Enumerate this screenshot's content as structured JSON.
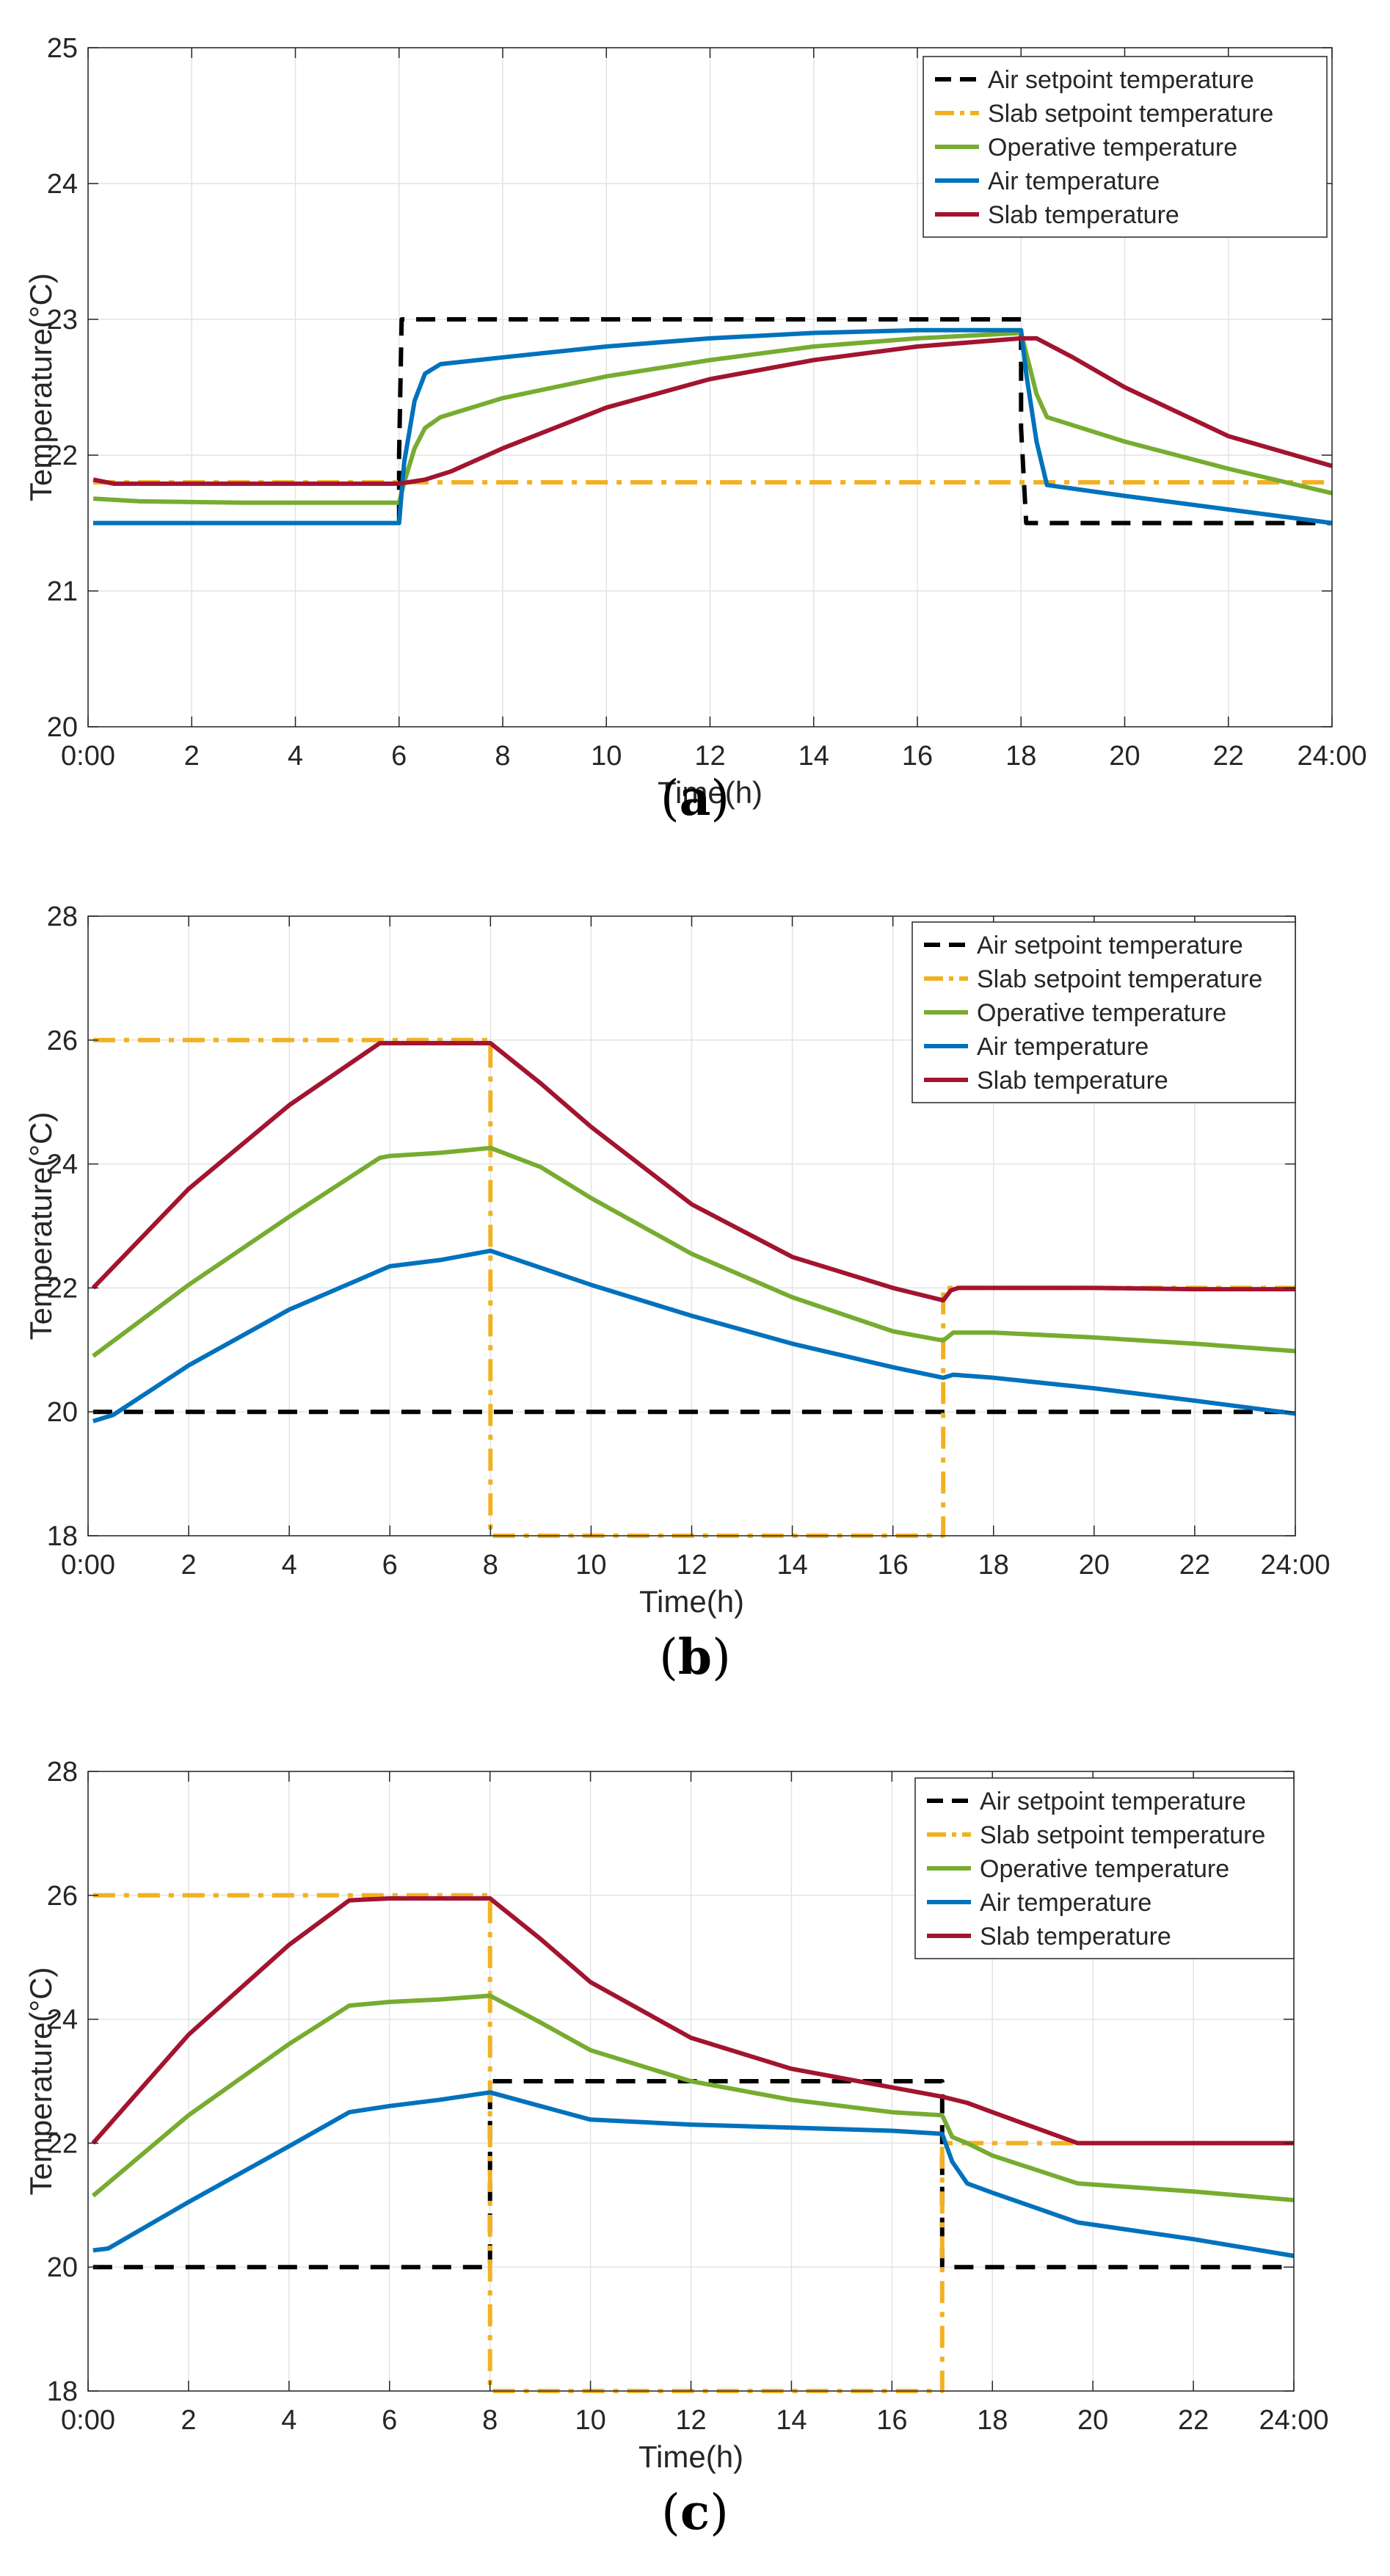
{
  "chart_data": [
    {
      "type": "line",
      "panel_label": "a",
      "xlabel": "Time(h)",
      "ylabel": "Temperature(°C)",
      "xlim": [
        0,
        24
      ],
      "ylim": [
        20,
        25
      ],
      "xticks": [
        0,
        2,
        4,
        6,
        8,
        10,
        12,
        14,
        16,
        18,
        20,
        22,
        24
      ],
      "xtick_labels": [
        "0:00",
        "2",
        "4",
        "6",
        "8",
        "10",
        "12",
        "14",
        "16",
        "18",
        "20",
        "22",
        "24:00"
      ],
      "yticks": [
        20,
        21,
        22,
        23,
        24,
        25
      ],
      "ytick_labels": [
        "20",
        "21",
        "22",
        "23",
        "24",
        "25"
      ],
      "grid": true,
      "legend_position": "top-right",
      "series": [
        {
          "name": "Air setpoint temperature",
          "color": "#000000",
          "style": "dashed",
          "x": [
            0.1,
            6.0,
            6.0,
            6.05,
            18.0,
            18.0,
            18.1,
            24.0
          ],
          "y": [
            21.5,
            21.5,
            22.0,
            23.0,
            23.0,
            22.2,
            21.5,
            21.5
          ]
        },
        {
          "name": "Slab setpoint temperature",
          "color": "#F2B122",
          "style": "dashdot",
          "x": [
            0.1,
            6.0,
            6.05,
            24.0
          ],
          "y": [
            21.8,
            21.8,
            21.8,
            21.8
          ]
        },
        {
          "name": "Operative temperature",
          "color": "#77AC30",
          "style": "solid",
          "x": [
            0.1,
            1,
            3,
            6.0,
            6.1,
            6.3,
            6.5,
            6.8,
            8,
            10,
            12,
            14,
            16,
            18.0,
            18.1,
            18.3,
            18.5,
            20,
            22,
            24
          ],
          "y": [
            21.68,
            21.66,
            21.65,
            21.65,
            21.8,
            22.05,
            22.2,
            22.28,
            22.42,
            22.58,
            22.7,
            22.8,
            22.86,
            22.9,
            22.75,
            22.45,
            22.28,
            22.1,
            21.9,
            21.72
          ]
        },
        {
          "name": "Air temperature",
          "color": "#0072BD",
          "style": "solid",
          "x": [
            0.1,
            3,
            6.0,
            6.1,
            6.3,
            6.5,
            6.8,
            8,
            10,
            12,
            14,
            16,
            18.0,
            18.1,
            18.3,
            18.5,
            20,
            22,
            24
          ],
          "y": [
            21.5,
            21.5,
            21.5,
            21.95,
            22.4,
            22.6,
            22.67,
            22.72,
            22.8,
            22.86,
            22.9,
            22.92,
            22.92,
            22.6,
            22.1,
            21.78,
            21.7,
            21.6,
            21.5
          ]
        },
        {
          "name": "Slab temperature",
          "color": "#A2142F",
          "style": "solid",
          "x": [
            0.1,
            0.5,
            2,
            4,
            6.0,
            6.5,
            7,
            8,
            10,
            12,
            14,
            16,
            18.0,
            18.3,
            19,
            20,
            22,
            24
          ],
          "y": [
            21.82,
            21.79,
            21.79,
            21.79,
            21.79,
            21.82,
            21.88,
            22.05,
            22.35,
            22.56,
            22.7,
            22.8,
            22.86,
            22.86,
            22.72,
            22.5,
            22.14,
            21.92
          ]
        }
      ]
    },
    {
      "type": "line",
      "panel_label": "b",
      "xlabel": "Time(h)",
      "ylabel": "Temperature(°C)",
      "xlim": [
        0,
        24
      ],
      "ylim": [
        18,
        28
      ],
      "xticks": [
        0,
        2,
        4,
        6,
        8,
        10,
        12,
        14,
        16,
        18,
        20,
        22,
        24
      ],
      "xtick_labels": [
        "0:00",
        "2",
        "4",
        "6",
        "8",
        "10",
        "12",
        "14",
        "16",
        "18",
        "20",
        "22",
        "24:00"
      ],
      "yticks": [
        18,
        20,
        22,
        24,
        26,
        28
      ],
      "ytick_labels": [
        "18",
        "20",
        "22",
        "24",
        "26",
        "28"
      ],
      "grid": true,
      "legend_position": "top-right",
      "series": [
        {
          "name": "Air setpoint temperature",
          "color": "#000000",
          "style": "dashed",
          "x": [
            0.1,
            24.0
          ],
          "y": [
            20.0,
            20.0
          ]
        },
        {
          "name": "Slab setpoint temperature",
          "color": "#F2B122",
          "style": "dashdot",
          "x": [
            0.1,
            8.0,
            8.0,
            17.0,
            17.0,
            24.0
          ],
          "y": [
            26.0,
            26.0,
            18.0,
            18.0,
            22.0,
            22.0
          ]
        },
        {
          "name": "Operative temperature",
          "color": "#77AC30",
          "style": "solid",
          "x": [
            0.1,
            2,
            4,
            5.8,
            6,
            7,
            8.0,
            9,
            10,
            12,
            14,
            16,
            17.0,
            17.2,
            18,
            20,
            22,
            24
          ],
          "y": [
            20.9,
            22.05,
            23.15,
            24.1,
            24.13,
            24.18,
            24.26,
            23.95,
            23.45,
            22.55,
            21.85,
            21.3,
            21.15,
            21.28,
            21.28,
            21.2,
            21.1,
            20.98
          ]
        },
        {
          "name": "Air temperature",
          "color": "#0072BD",
          "style": "solid",
          "x": [
            0.1,
            0.5,
            2,
            4,
            5.8,
            6,
            7,
            8.0,
            10,
            12,
            14,
            16,
            17.0,
            17.2,
            18,
            20,
            22,
            24
          ],
          "y": [
            19.85,
            19.95,
            20.75,
            21.65,
            22.28,
            22.35,
            22.45,
            22.6,
            22.05,
            21.55,
            21.1,
            20.72,
            20.55,
            20.6,
            20.55,
            20.38,
            20.18,
            19.97
          ]
        },
        {
          "name": "Slab temperature",
          "color": "#A2142F",
          "style": "solid",
          "x": [
            0.1,
            2,
            4,
            5.8,
            6,
            7,
            8.0,
            9,
            10,
            12,
            14,
            16,
            17.0,
            17.15,
            17.3,
            18,
            20,
            22,
            24
          ],
          "y": [
            22.0,
            23.6,
            24.95,
            25.95,
            25.95,
            25.95,
            25.95,
            25.3,
            24.6,
            23.35,
            22.5,
            22.0,
            21.8,
            21.96,
            22.0,
            22.0,
            22.0,
            21.98,
            21.98
          ]
        }
      ]
    },
    {
      "type": "line",
      "panel_label": "c",
      "xlabel": "Time(h)",
      "ylabel": "Temperature(°C)",
      "xlim": [
        0,
        24
      ],
      "ylim": [
        18,
        28
      ],
      "xticks": [
        0,
        2,
        4,
        6,
        8,
        10,
        12,
        14,
        16,
        18,
        20,
        22,
        24
      ],
      "xtick_labels": [
        "0:00",
        "2",
        "4",
        "6",
        "8",
        "10",
        "12",
        "14",
        "16",
        "18",
        "20",
        "22",
        "24:00"
      ],
      "yticks": [
        18,
        20,
        22,
        24,
        26,
        28
      ],
      "ytick_labels": [
        "18",
        "20",
        "22",
        "24",
        "26",
        "28"
      ],
      "grid": true,
      "legend_position": "top-right",
      "series": [
        {
          "name": "Air setpoint temperature",
          "color": "#000000",
          "style": "dashed",
          "x": [
            0.1,
            8.0,
            8.0,
            17.0,
            17.0,
            24.0
          ],
          "y": [
            20.0,
            20.0,
            23.0,
            23.0,
            20.0,
            20.0
          ]
        },
        {
          "name": "Slab setpoint temperature",
          "color": "#F2B122",
          "style": "dashdot",
          "x": [
            0.1,
            8.0,
            8.0,
            17.0,
            17.0,
            24.0
          ],
          "y": [
            26.0,
            26.0,
            18.0,
            18.0,
            22.0,
            22.0
          ]
        },
        {
          "name": "Operative temperature",
          "color": "#77AC30",
          "style": "solid",
          "x": [
            0.1,
            2,
            4,
            5.2,
            6,
            7,
            8.0,
            9,
            10,
            12,
            14,
            16,
            17.0,
            17.2,
            17.5,
            18,
            19.7,
            22,
            24
          ],
          "y": [
            21.15,
            22.45,
            23.6,
            24.22,
            24.28,
            24.32,
            24.38,
            23.95,
            23.5,
            23.0,
            22.7,
            22.5,
            22.45,
            22.1,
            22.0,
            21.8,
            21.35,
            21.22,
            21.08
          ]
        },
        {
          "name": "Air temperature",
          "color": "#0072BD",
          "style": "solid",
          "x": [
            0.1,
            0.4,
            2,
            4,
            5.2,
            6,
            7,
            8.0,
            9,
            10,
            12,
            14,
            16,
            17.0,
            17.2,
            17.5,
            18,
            19.7,
            22,
            24
          ],
          "y": [
            20.27,
            20.3,
            21.05,
            21.95,
            22.5,
            22.6,
            22.7,
            22.82,
            22.6,
            22.38,
            22.3,
            22.25,
            22.2,
            22.15,
            21.7,
            21.35,
            21.2,
            20.72,
            20.45,
            20.18
          ]
        },
        {
          "name": "Slab temperature",
          "color": "#A2142F",
          "style": "solid",
          "x": [
            0.1,
            2,
            4,
            5.2,
            6,
            7,
            8.0,
            9,
            10,
            12,
            14,
            16,
            17.0,
            17.5,
            18,
            19.7,
            22,
            24
          ],
          "y": [
            22.0,
            23.75,
            25.2,
            25.92,
            25.95,
            25.95,
            25.95,
            25.3,
            24.6,
            23.7,
            23.2,
            22.9,
            22.75,
            22.65,
            22.5,
            22.0,
            22.0,
            22.0
          ]
        }
      ]
    }
  ]
}
